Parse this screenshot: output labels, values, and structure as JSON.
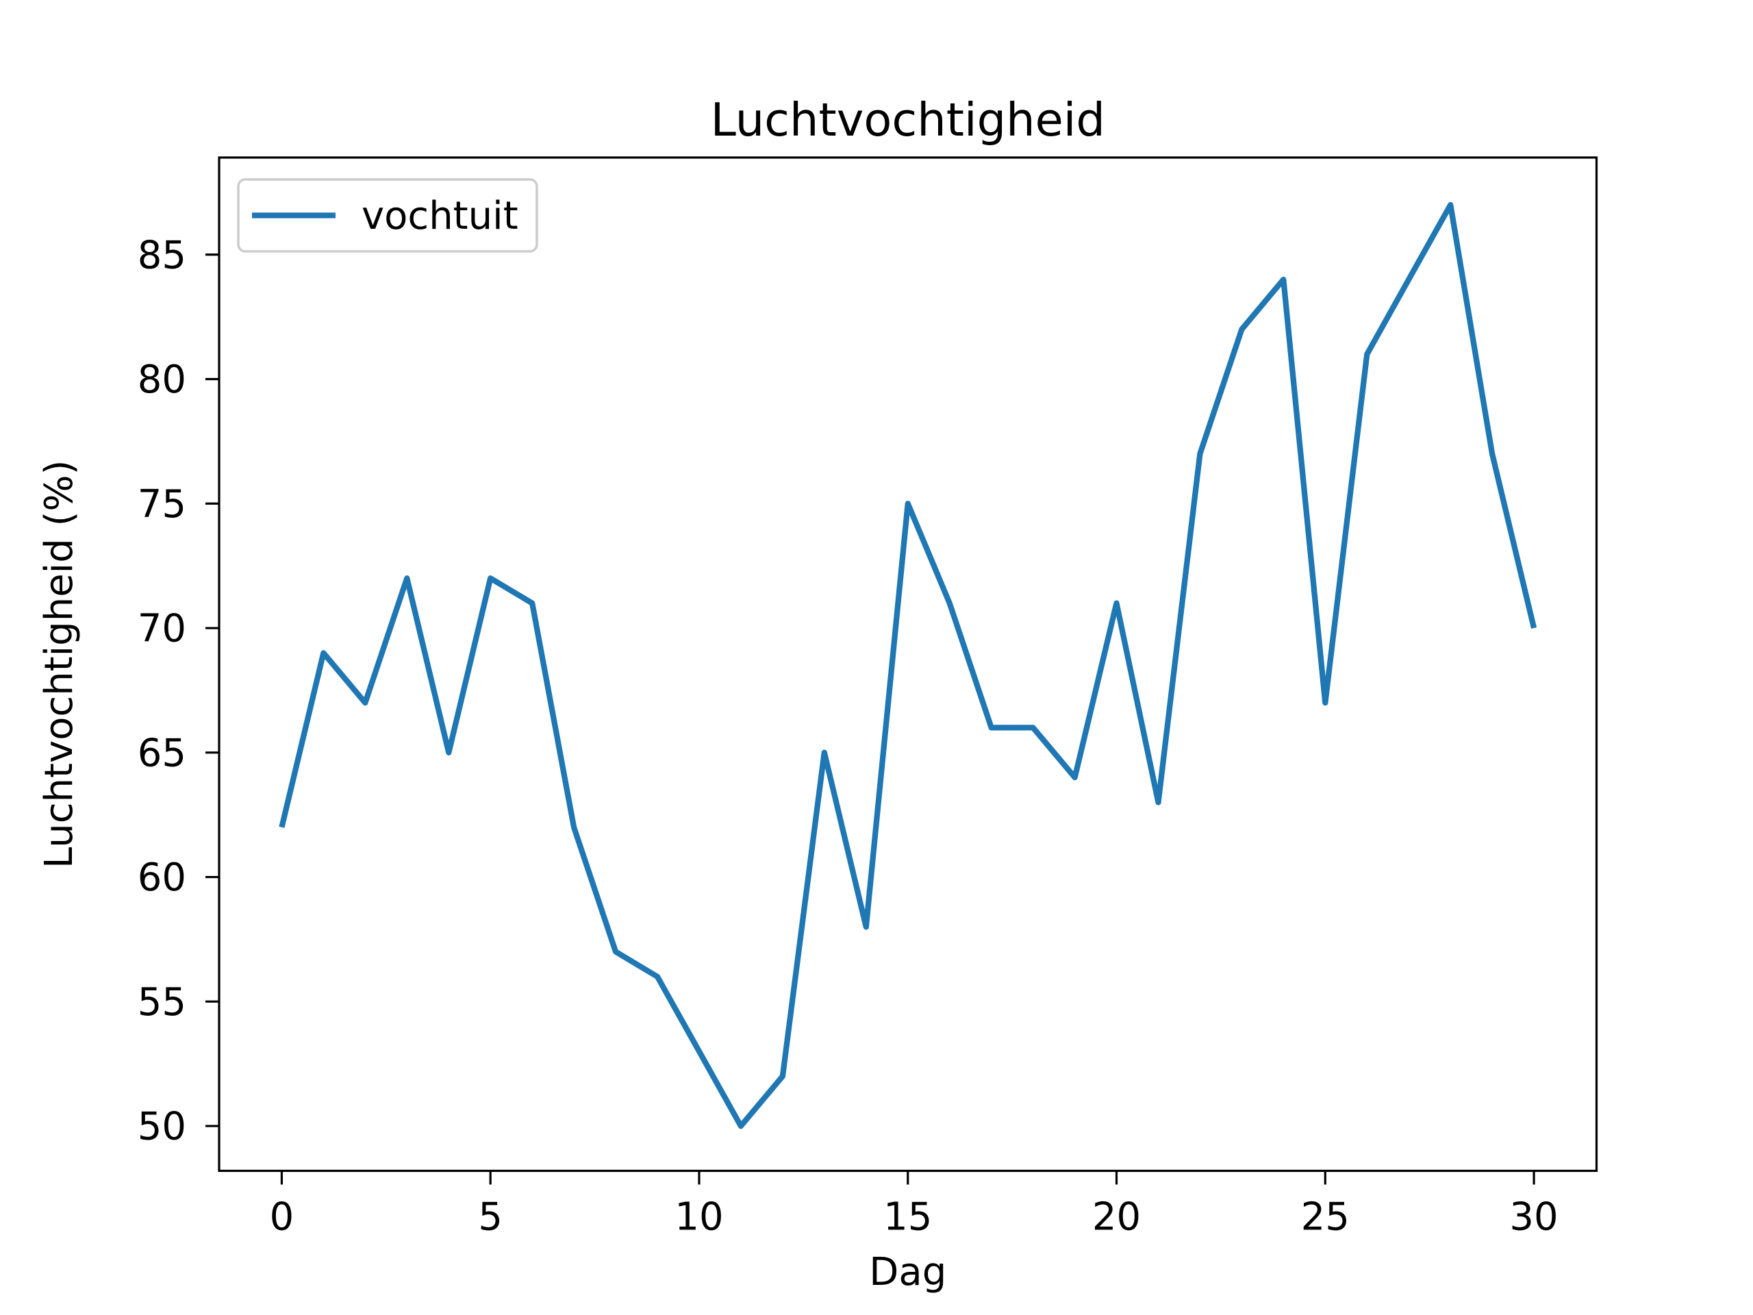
{
  "figure": {
    "background_color": "#ffffff",
    "text_color": "#000000",
    "spine_color": "#000000"
  },
  "chart_data": {
    "type": "line",
    "title": "Luchtvochtigheid",
    "xlabel": "Dag",
    "ylabel": "Luchtvochtigheid (%)",
    "x": [
      0,
      1,
      2,
      3,
      4,
      5,
      6,
      7,
      8,
      9,
      10,
      11,
      12,
      13,
      14,
      15,
      16,
      17,
      18,
      19,
      20,
      21,
      22,
      23,
      24,
      25,
      26,
      27,
      28,
      29,
      30
    ],
    "series": [
      {
        "name": "vochtuit",
        "color": "#1f77b4",
        "values": [
          62,
          69,
          67,
          72,
          65,
          72,
          71,
          62,
          57,
          56,
          53,
          50,
          52,
          65,
          58,
          75,
          71,
          66,
          66,
          64,
          71,
          63,
          77,
          82,
          84,
          67,
          81,
          84,
          87,
          77,
          70
        ]
      }
    ],
    "xticks": [
      0,
      5,
      10,
      15,
      20,
      25,
      30
    ],
    "yticks": [
      50,
      55,
      60,
      65,
      70,
      75,
      80,
      85
    ],
    "xlim": [
      -1.5,
      31.5
    ],
    "ylim": [
      48.2,
      88.9
    ],
    "grid": false,
    "legend_position": "upper left",
    "legend_border_color": "#cccccc",
    "legend_background_color": "#ffffff"
  }
}
